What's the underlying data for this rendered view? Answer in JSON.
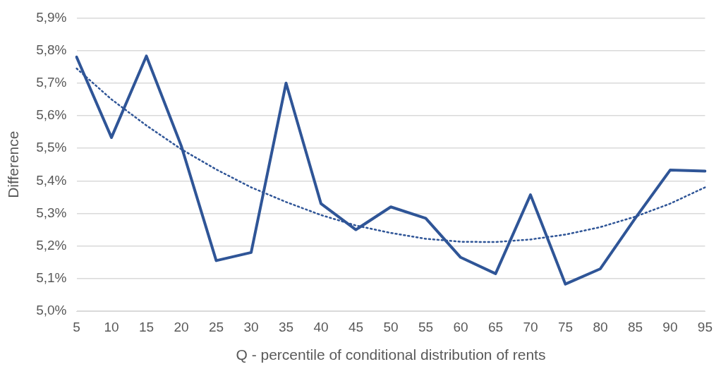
{
  "chart_data": {
    "type": "line",
    "xlabel": "Q - percentile of conditional distribution of rents",
    "ylabel": "Difference",
    "categories": [
      "5",
      "10",
      "15",
      "20",
      "25",
      "30",
      "35",
      "40",
      "45",
      "50",
      "55",
      "60",
      "65",
      "70",
      "75",
      "80",
      "85",
      "90",
      "95"
    ],
    "series": [
      {
        "color": "#2f5597",
        "line_style": "solid",
        "values": [
          5.78,
          5.533,
          5.783,
          5.507,
          5.155,
          5.18,
          5.7,
          5.33,
          5.25,
          5.32,
          5.285,
          5.165,
          5.115,
          5.357,
          5.083,
          5.13,
          5.285,
          5.433,
          5.43
        ]
      },
      {
        "type": "line",
        "color": "#2f5597",
        "line_style": "dotted",
        "values": [
          5.745,
          5.65,
          5.57,
          5.497,
          5.435,
          5.38,
          5.335,
          5.295,
          5.263,
          5.24,
          5.222,
          5.213,
          5.212,
          5.22,
          5.235,
          5.258,
          5.29,
          5.33,
          5.38
        ]
      }
    ],
    "ylim": [
      5.0,
      5.9
    ],
    "yticks": [
      {
        "value": 5.0,
        "label": "5,0%"
      },
      {
        "value": 5.1,
        "label": "5,1%"
      },
      {
        "value": 5.2,
        "label": "5,2%"
      },
      {
        "value": 5.3,
        "label": "5,3%"
      },
      {
        "value": 5.4,
        "label": "5,4%"
      },
      {
        "value": 5.5,
        "label": "5,5%"
      },
      {
        "value": 5.6,
        "label": "5,6%"
      },
      {
        "value": 5.7,
        "label": "5,7%"
      },
      {
        "value": 5.8,
        "label": "5,8%"
      },
      {
        "value": 5.9,
        "label": "5,9%"
      }
    ],
    "grid": "y",
    "legend": false,
    "marker": "none"
  }
}
